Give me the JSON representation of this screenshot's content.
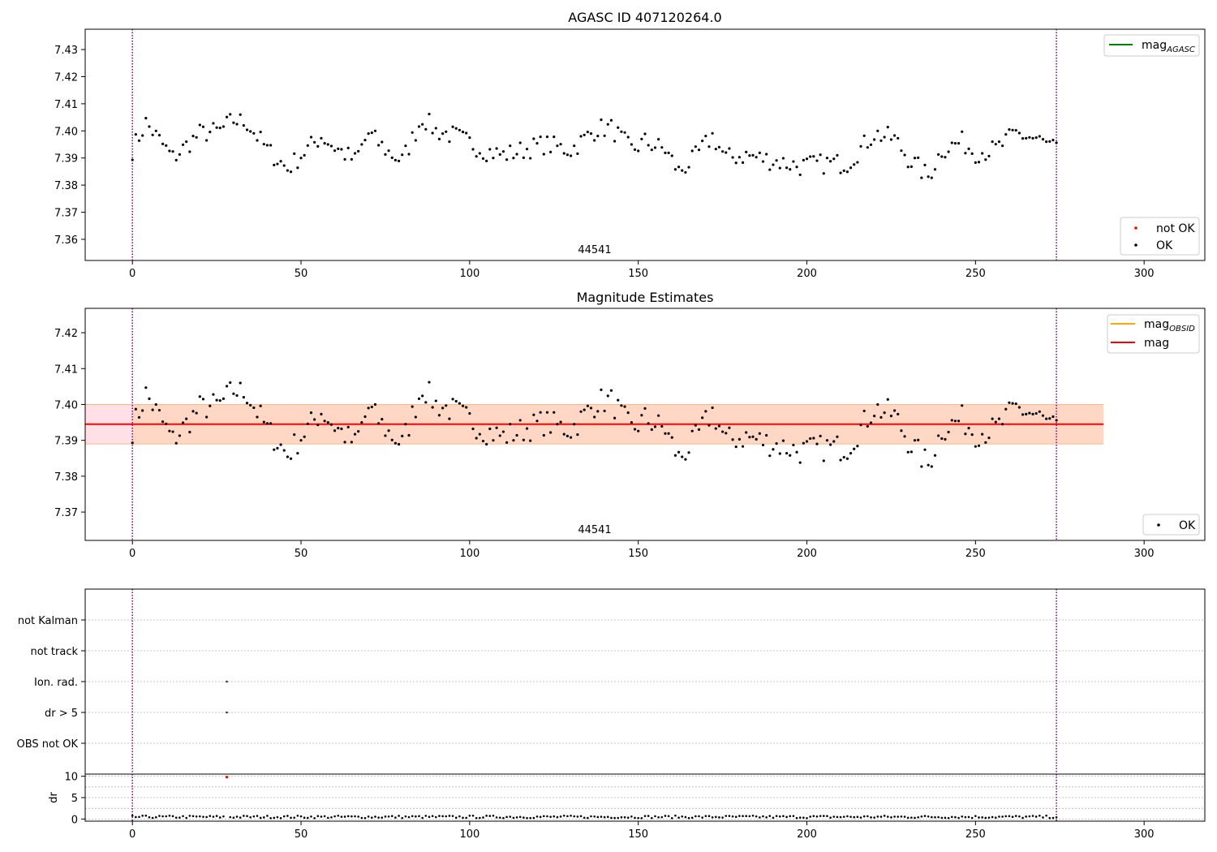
{
  "chart_data": [
    {
      "type": "scatter",
      "title": "AGASC ID 407120264.0",
      "xlim": [
        -14,
        318
      ],
      "ylim": [
        7.3522,
        7.4375
      ],
      "xticks": [
        0,
        50,
        100,
        150,
        200,
        250,
        300
      ],
      "yticks": [
        7.36,
        7.37,
        7.38,
        7.39,
        7.4,
        7.41,
        7.42,
        7.43
      ],
      "vlines": [
        0,
        274
      ],
      "annotation": "44541",
      "annotation_x": 137,
      "legend_top": [
        {
          "label": "mag",
          "subscript": "AGASC",
          "color": "#008000",
          "marker": "line"
        }
      ],
      "legend_bottom": [
        {
          "label": "not OK",
          "color": "#ff0000",
          "marker": "dot"
        },
        {
          "label": "OK",
          "color": "#000000",
          "marker": "dot"
        }
      ],
      "grid": false
    },
    {
      "type": "scatter",
      "title": "Magnitude Estimates",
      "xlim": [
        -14,
        318
      ],
      "ylim": [
        7.3621,
        7.4268
      ],
      "xticks": [
        0,
        50,
        100,
        150,
        200,
        250,
        300
      ],
      "yticks": [
        7.37,
        7.38,
        7.39,
        7.4,
        7.41,
        7.42
      ],
      "vlines": [
        0,
        274
      ],
      "annotation": "44541",
      "annotation_x": 137,
      "mag_value": 7.3945,
      "mag_band": [
        7.389,
        7.4
      ],
      "band_xrange": [
        -14,
        288
      ],
      "legend_top": [
        {
          "label": "mag",
          "subscript": "OBSID",
          "color": "#ffa500",
          "marker": "line"
        },
        {
          "label": "mag",
          "subscript": "",
          "color": "#ff0000",
          "marker": "line"
        }
      ],
      "legend_bottom": [
        {
          "label": "OK",
          "color": "#000000",
          "marker": "dot"
        }
      ],
      "grid": false
    },
    {
      "type": "scatter",
      "title": "",
      "xlim": [
        -14,
        318
      ],
      "categories": [
        "not Kalman",
        "not track",
        "Ion. rad.",
        "dr > 5",
        "OBS not OK"
      ],
      "flag_points": [
        {
          "category": "Ion. rad.",
          "x": 28
        },
        {
          "category": "dr > 5",
          "x": 28
        }
      ],
      "vlines": [
        0,
        274
      ],
      "grid": true
    },
    {
      "type": "scatter",
      "title": "",
      "ylabel": "dr",
      "xlim": [
        -14,
        318
      ],
      "ylim": [
        -0.5,
        10.5
      ],
      "xticks": [
        0,
        50,
        100,
        150,
        200,
        250,
        300
      ],
      "yticks": [
        0,
        5,
        10
      ],
      "outlier": {
        "x": 28,
        "y": 9.8,
        "color": "#ff0000"
      },
      "vlines": [
        0,
        274
      ],
      "grid": true
    }
  ],
  "colors": {
    "points_ok": "#000000",
    "points_not_ok": "#ff0000",
    "vline": "#800080",
    "band_outer": "#ffe0e6",
    "band_inner": "#ffd6c2"
  }
}
